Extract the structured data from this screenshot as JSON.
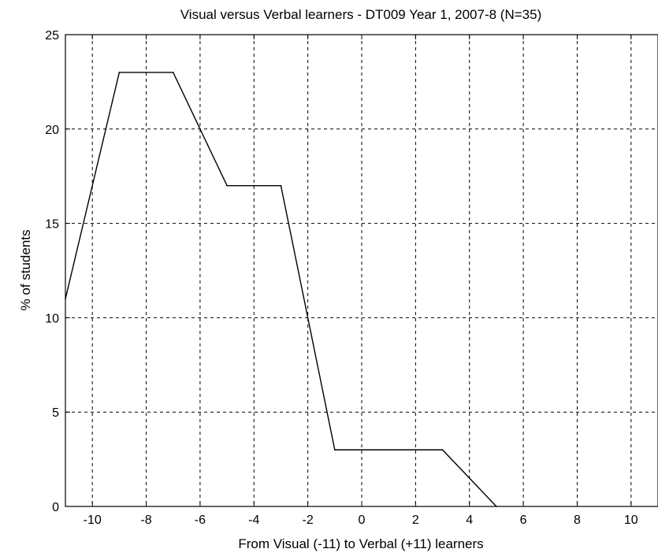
{
  "chart_data": {
    "type": "line",
    "title": "Visual versus Verbal learners - DT009 Year 1, 2007-8 (N=35)",
    "xlabel": "From Visual (-11) to Verbal (+11) learners",
    "ylabel": "% of students",
    "xlim": [
      -11,
      11
    ],
    "ylim": [
      0,
      25
    ],
    "xticks": [
      -10,
      -8,
      -6,
      -4,
      -2,
      0,
      2,
      4,
      6,
      8,
      10
    ],
    "yticks": [
      0,
      5,
      10,
      15,
      20,
      25
    ],
    "grid": true,
    "series": [
      {
        "x": [
          -11,
          -9,
          -7,
          -5,
          -3,
          -1,
          1,
          3,
          5
        ],
        "y": [
          11,
          23,
          23,
          17,
          17,
          3,
          3,
          3,
          0
        ],
        "color": "#000000"
      }
    ]
  }
}
